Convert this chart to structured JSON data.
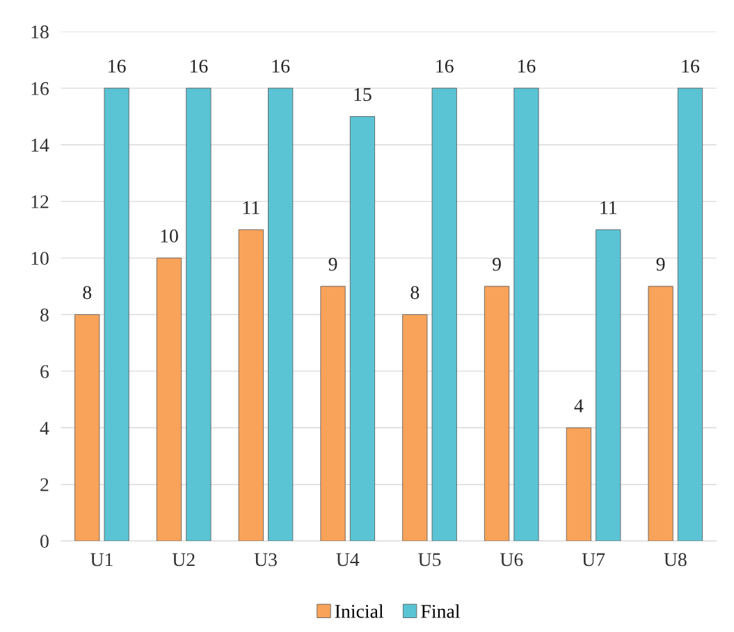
{
  "chart_data": {
    "type": "bar",
    "categories": [
      "U1",
      "U2",
      "U3",
      "U4",
      "U5",
      "U6",
      "U7",
      "U8"
    ],
    "series": [
      {
        "name": "Inicial",
        "color": "#f9a35a",
        "values": [
          8,
          10,
          11,
          9,
          8,
          9,
          4,
          9
        ]
      },
      {
        "name": "Final",
        "color": "#5bc4d4",
        "values": [
          16,
          16,
          16,
          15,
          16,
          16,
          11,
          16
        ]
      }
    ],
    "ylim": [
      0,
      18
    ],
    "yticks": [
      0,
      2,
      4,
      6,
      8,
      10,
      12,
      14,
      16,
      18
    ],
    "grid": "y",
    "legend": "bottom",
    "data_labels": true
  }
}
